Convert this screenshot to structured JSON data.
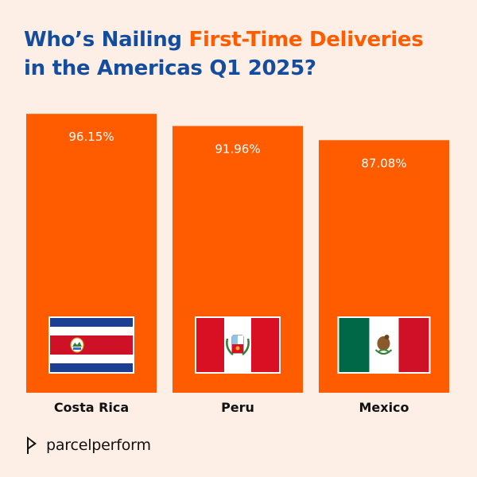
{
  "title": {
    "line1_part1": "Who’s Nailing ",
    "line1_part2": "First-Time Deliveries",
    "line2": "in the Americas Q1 2025?"
  },
  "colors": {
    "background": "#fdeee6",
    "title_blue": "#144d9e",
    "accent_orange": "#ff5c00",
    "bar": "#ff5c00",
    "value_label": "#ffffff",
    "category_label": "#111111"
  },
  "chart_data": {
    "type": "bar",
    "categories": [
      "Costa Rica",
      "Peru",
      "Mexico"
    ],
    "values": [
      96.15,
      91.96,
      87.08
    ],
    "value_labels": [
      "96.15%",
      "91.96%",
      "87.08%"
    ],
    "flags": [
      "costa-rica-flag",
      "peru-flag",
      "mexico-flag"
    ],
    "unit": "%",
    "ylim": [
      0,
      100
    ],
    "grid": false,
    "legend": "none"
  },
  "brand": {
    "logo_icon": "parcelperform-logo-mark",
    "name": "parcelperform"
  }
}
